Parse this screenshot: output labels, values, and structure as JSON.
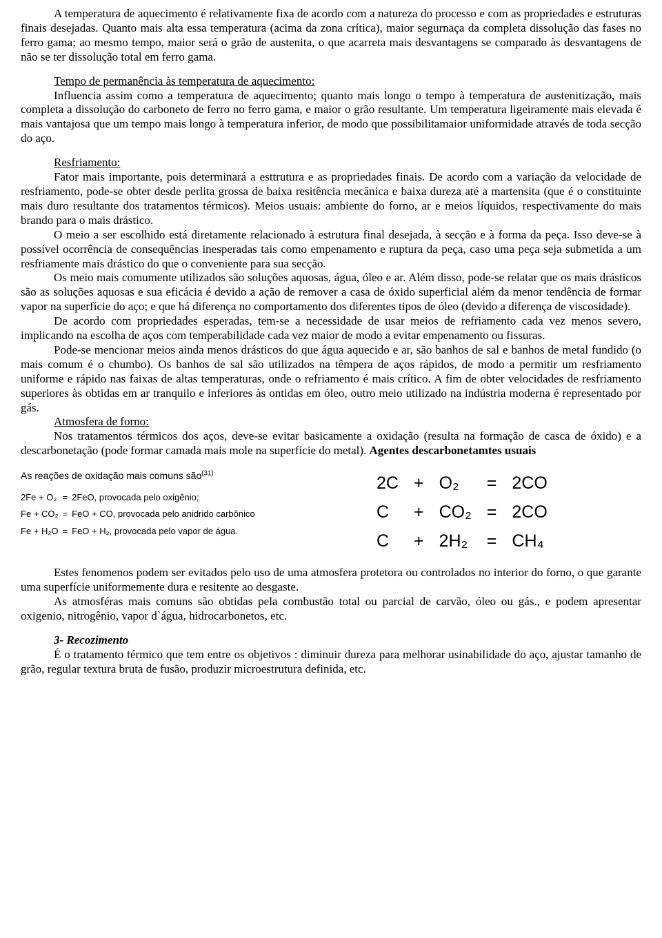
{
  "para1": "A temperatura de aquecimento é relativamente fixa de acordo com a natureza do processo e com as propriedades e estruturas finais desejadas. Quanto mais alta essa temperatura (acima da zona crítica), maior segurnaça da completa dissolução das fases no ferro gama; ao mesmo tempo, maior será o grão de austenita, o que acarreta mais desvantagens se comparado às desvantagens de não se ter dissolução total em ferro gama.",
  "h_tempo": "Tempo de permanência às temperatura de aquecimento:",
  "para_tempo": "Influencia assim como a temperatura de aquecimento; quanto mais longo o tempo à temperatura de austenitização, mais completa a dissolução do carboneto de ferro no ferro gama, e maior o grão resultante. Um temperatura ligeiramente mais elevada é mais vantajosa que um tempo mais longo à temperatura inferior, de modo que possibilitamaior uniformidade através de toda secção do aço.",
  "h_resf": "Resfriamento:",
  "resf_p1": "Fator mais importante, pois determinará a esttrutura e as propriedades finais. De acordo com a variação da velocidade de resfriamento, pode-se obter desde perlita grossa de baixa resitência mecânica e baixa dureza até a martensita (que é o constituinte mais duro resultante dos tratamentos térmicos). Meios usuais: ambiente do forno, ar e meios líquidos, respectivamente do mais brando para o mais drástico.",
  "resf_p2": "O meio a ser escolhido está diretamente relacionado à estrutura final desejada, à secção e à forma da peça. Isso deve-se à possível ocorrência de consequências inesperadas tais como empenamento e ruptura da peça, caso uma peça seja submetida a um resfriamente mais drástico do que o conveniente para sua secção.",
  "resf_p3": "Os meio mais comumente utilizados são soluções aquosas, água, óleo e ar. Além disso, pode-se relatar que os mais drásticos são as soluções aquosas e sua eficácia é devido a ação de remover a casa de óxido superficial além da menor tendência de formar vapor na superfície do aço; e que há diferença no comportamento dos diferentes tipos de óleo (devido a diferença de viscosidade).",
  "resf_p4": "De acordo com propriedades esperadas, tem-se a necessidade de usar meios de refriamento cada vez menos severo, implicando na escolha de aços com temperabilidade cada vez maior de modo a evitar empenamento ou fissuras.",
  "resf_p5": "Pode-se mencionar meios ainda menos drásticos do que água aquecido e ar, são banhos de sal e banhos de metal fundido (o mais comum é o chumbo). Os banhos de sal são utilizados na têmpera de aços rápidos, de modo a permitir um resfriamento uniforme e rápido nas faixas de altas temperaturas, onde o refriamento é mais crítico. A fim de obter velocidades de resfriamento superiores às obtidas em ar tranquilo e inferiores às ontidas em óleo, outro meio utilizado na indústria moderna é representado por gás.",
  "h_atm": "Atmosfera de forno:",
  "atm_p1_a": "Nos tratamentos térmicos dos aços, deve-se evitar basicamente a oxidação (resulta na formação de casca de óxido) e a descarbonetação (pode formar camada mais mole na superfície do metal). ",
  "atm_p1_bold": "Agentes descarbonetamtes usuais",
  "left_header": "As reações de oxidação mais comuns são",
  "left_sup": "(31)",
  "left_rows": [
    {
      "l": "2Fe  +  O₂",
      "eq": "=",
      "r": "2FeO, provocada pelo oxigênio;"
    },
    {
      "l": "Fe   +  CO₂",
      "eq": "=",
      "r": "FeO  +  CO, provocada pelo anidrido carbônico"
    },
    {
      "l": "Fe   +  H₂O",
      "eq": "=",
      "r": "FeO  +  H₂, provocada pelo vapor de água."
    }
  ],
  "right_rows": [
    {
      "a": "2C",
      "b": "+",
      "c": "O₂",
      "d": "=",
      "e": "2CO"
    },
    {
      "a": "C",
      "b": "+",
      "c": "CO₂",
      "d": "=",
      "e": "2CO"
    },
    {
      "a": "C",
      "b": "+",
      "c": "2H₂",
      "d": "=",
      "e": "CH₄"
    }
  ],
  "after1": "Estes fenomenos podem ser evitados pelo uso de uma atmosfera protetora ou controlados no interior do forno, o que garante uma superfície uniformemente dura e resitente ao desgaste.",
  "after2": "As atmosféras mais comuns são obtidas pela combustão total ou parcial de carvão, óleo ou gás., e podem apresentar oxigenio, nitrogênio, vapor d`água, hidrocarbonetos, etc.",
  "h3": "3- Recozimento",
  "p3": "É o tratamento térmico que tem entre os objetivos : diminuir dureza para melhorar usinabilidade do aço, ajustar tamanho de grão, regular textura bruta de fusão, produzir microestrutura definida, etc."
}
